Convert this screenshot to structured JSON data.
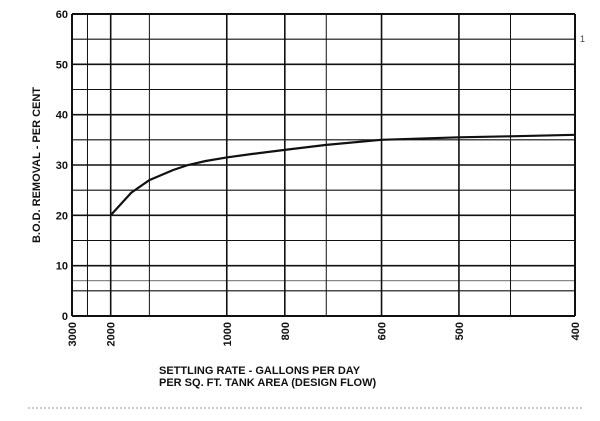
{
  "chart_data": {
    "type": "line",
    "title": "",
    "ylabel": "B.O.D. REMOVAL - PER CENT",
    "xlabel_line1": "SETTLING RATE - GALLONS PER DAY",
    "xlabel_line2": "PER SQ. FT. TANK AREA (DESIGN FLOW)",
    "x_scale": "reciprocal",
    "xlim": [
      3000,
      400
    ],
    "ylim": [
      0,
      60
    ],
    "x_ticks": [
      3000,
      2000,
      1000,
      800,
      600,
      500,
      400
    ],
    "y_ticks": [
      0,
      10,
      20,
      30,
      40,
      50,
      60
    ],
    "grid": true,
    "series": [
      {
        "x": [
          2000,
          1700,
          1500,
          1300,
          1200,
          1100,
          1000,
          900,
          800,
          700,
          600,
          500,
          450,
          400
        ],
        "y": [
          20.0,
          24.5,
          27.0,
          29.0,
          30.0,
          30.8,
          31.5,
          32.2,
          33.0,
          34.0,
          35.0,
          35.5,
          35.7,
          36.0
        ]
      }
    ],
    "stray_mark": "1",
    "colors": {
      "line": "#111111",
      "grid": "#111111",
      "background": "#ffffff"
    }
  }
}
